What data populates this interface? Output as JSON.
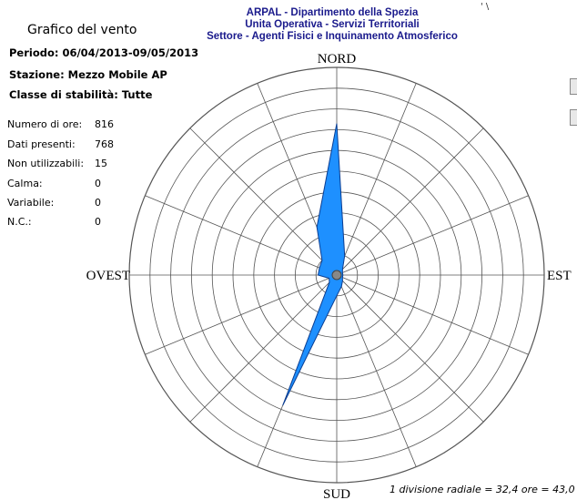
{
  "header": {
    "line1": "ARPAL - Dipartimento della Spezia",
    "line2": "Unita Operativa - Servizi Territoriali",
    "line3": "Settore - Agenti Fisici e Inquinamento Atmosferico",
    "corner_mark": "' \\"
  },
  "panel": {
    "title": "Grafico del vento",
    "periodo": "Periodo: 06/04/2013-09/05/2013",
    "stazione": "Stazione: Mezzo Mobile AP",
    "classe": "Classe di stabilità: Tutte",
    "stats": [
      {
        "label": "Numero di ore:",
        "value": "816"
      },
      {
        "label": "Dati presenti:",
        "value": "768"
      },
      {
        "label": "Non utilizzabili:",
        "value": "15"
      },
      {
        "label": "Calma:",
        "value": "0"
      },
      {
        "label": "Variabile:",
        "value": "0"
      },
      {
        "label": "N.C.:",
        "value": "0"
      }
    ]
  },
  "footer": "1 divisione radiale = 32,4 ore = 43,0",
  "colors": {
    "petal": "#1e90ff",
    "petal_stroke": "#0b3d91",
    "grid": "#555555",
    "header": "#1a1a8c"
  },
  "chart_data": {
    "type": "wind-rose",
    "cardinals": {
      "n": "NORD",
      "e": "EST",
      "s": "SUD",
      "w": "OVEST"
    },
    "directions": 16,
    "rings": 10,
    "radial_unit": "1 divisione radiale = 32,4 ore",
    "values_divisions": [
      7.3,
      1.0,
      0.4,
      0.3,
      0.3,
      0.3,
      0.4,
      0.6,
      1.0,
      6.8,
      0.5,
      0.4,
      0.9,
      0.9,
      1.0,
      2.5
    ]
  }
}
